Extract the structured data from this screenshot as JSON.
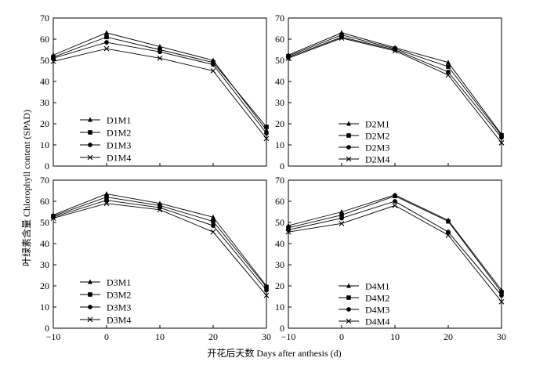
{
  "figure": {
    "ylabel": "叶绿素含量 Chlorophyll content (SPAD)",
    "xlabel": "开花后天数 Days after anthesis (d)"
  },
  "chart_data": [
    {
      "type": "line",
      "x": [
        -10,
        0,
        10,
        20,
        30
      ],
      "xlim": [
        -10,
        30
      ],
      "ylim": [
        0,
        70
      ],
      "xticks": [
        "-10",
        "0",
        "10",
        "20",
        "30"
      ],
      "yticks": [
        "0",
        "10",
        "20",
        "30",
        "40",
        "50",
        "60",
        "70"
      ],
      "legend_position": "bottom-left",
      "series": [
        {
          "name": "D1M1",
          "marker": "triangle",
          "values": [
            52.5,
            63,
            56.5,
            50,
            17
          ]
        },
        {
          "name": "D1M2",
          "marker": "square",
          "values": [
            51.5,
            61,
            55,
            49,
            18.5
          ]
        },
        {
          "name": "D1M3",
          "marker": "circle",
          "values": [
            51,
            58.5,
            54,
            48,
            15.5
          ]
        },
        {
          "name": "D1M4",
          "marker": "x",
          "values": [
            49.5,
            55.5,
            51,
            45,
            13
          ]
        }
      ]
    },
    {
      "type": "line",
      "x": [
        -10,
        0,
        10,
        20,
        30
      ],
      "xlim": [
        -10,
        30
      ],
      "ylim": [
        0,
        70
      ],
      "xticks": [
        "-10",
        "0",
        "10",
        "20",
        "30"
      ],
      "yticks": [
        "0",
        "10",
        "20",
        "30",
        "40",
        "50",
        "60",
        "70"
      ],
      "legend_position": "bottom-right",
      "series": [
        {
          "name": "D2M1",
          "marker": "triangle",
          "values": [
            52.5,
            63,
            56,
            49,
            15
          ]
        },
        {
          "name": "D2M2",
          "marker": "square",
          "values": [
            52,
            62,
            55.5,
            47,
            14.5
          ]
        },
        {
          "name": "D2M3",
          "marker": "circle",
          "values": [
            51.5,
            61,
            55,
            44.5,
            13.5
          ]
        },
        {
          "name": "D2M4",
          "marker": "x",
          "values": [
            51,
            60.5,
            54.5,
            43,
            11
          ]
        }
      ]
    },
    {
      "type": "line",
      "x": [
        -10,
        0,
        10,
        20,
        30
      ],
      "xlim": [
        -10,
        30
      ],
      "ylim": [
        0,
        70
      ],
      "xticks": [
        "-10",
        "0",
        "10",
        "20",
        "30"
      ],
      "yticks": [
        "0",
        "10",
        "20",
        "30",
        "40",
        "50",
        "60",
        "70"
      ],
      "legend_position": "bottom-left",
      "series": [
        {
          "name": "D3M1",
          "marker": "triangle",
          "values": [
            53.5,
            63.5,
            59,
            52.5,
            20
          ]
        },
        {
          "name": "D3M2",
          "marker": "square",
          "values": [
            53,
            62,
            58,
            50.5,
            19.5
          ]
        },
        {
          "name": "D3M3",
          "marker": "circle",
          "values": [
            52.5,
            60.5,
            57,
            48.5,
            18
          ]
        },
        {
          "name": "D3M4",
          "marker": "x",
          "values": [
            52,
            59,
            56,
            45.5,
            15.5
          ]
        }
      ]
    },
    {
      "type": "line",
      "x": [
        -10,
        0,
        10,
        20,
        30
      ],
      "xlim": [
        -10,
        30
      ],
      "ylim": [
        0,
        70
      ],
      "xticks": [
        "-10",
        "0",
        "10",
        "20",
        "30"
      ],
      "yticks": [
        "0",
        "10",
        "20",
        "30",
        "40",
        "50",
        "60",
        "70"
      ],
      "legend_position": "bottom-right",
      "series": [
        {
          "name": "D4M1",
          "marker": "triangle",
          "values": [
            48.5,
            55,
            63,
            51,
            18
          ]
        },
        {
          "name": "D4M2",
          "marker": "square",
          "values": [
            47.5,
            53.5,
            62.5,
            50.5,
            17
          ]
        },
        {
          "name": "D4M3",
          "marker": "circle",
          "values": [
            46.5,
            52,
            60,
            45.5,
            15.5
          ]
        },
        {
          "name": "D4M4",
          "marker": "x",
          "values": [
            45.5,
            49.5,
            58,
            44,
            12.5
          ]
        }
      ]
    }
  ]
}
